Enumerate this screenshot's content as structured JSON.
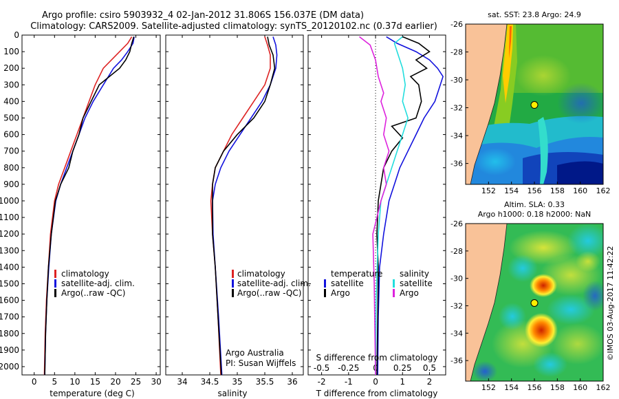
{
  "header": {
    "line1": "Argo profile: csiro 5903932_4 02-Jan-2012 31.806S 156.037E (DM data)",
    "line2": "Climatology: CARS2009. Satellite-adjusted climatology: synTS_20120102.nc (0.37d earlier)"
  },
  "colors": {
    "climatology": "#dd2222",
    "satellite": "#1111dd",
    "argo": "#000000",
    "argo_salinity": "#dd22dd",
    "sat_salinity": "#22dddd",
    "land": "#f9c298"
  },
  "side_text": "©IMOS 03-Aug-2017 11:42:22",
  "chart_data": [
    {
      "id": "temperature",
      "type": "line",
      "xlabel": "temperature (deg C)",
      "ylabel": "",
      "xlim": [
        -3,
        31
      ],
      "ylim": [
        2050,
        0
      ],
      "xticks": [
        "0",
        "5",
        "10",
        "15",
        "20",
        "25",
        "30"
      ],
      "xtick_values": [
        0,
        5,
        10,
        15,
        20,
        25,
        30
      ],
      "yticks": [
        "0",
        "100",
        "200",
        "300",
        "400",
        "500",
        "600",
        "700",
        "800",
        "900",
        "1000",
        "1100",
        "1200",
        "1300",
        "1400",
        "1500",
        "1600",
        "1700",
        "1800",
        "1900",
        "2000"
      ],
      "ytick_values": [
        0,
        100,
        200,
        300,
        400,
        500,
        600,
        700,
        800,
        900,
        1000,
        1100,
        1200,
        1300,
        1400,
        1500,
        1600,
        1700,
        1800,
        1900,
        2000
      ],
      "legend": [
        "climatology",
        "satellite-adj. clim.",
        "Argo(..raw -QC)"
      ],
      "series": [
        {
          "name": "climatology",
          "color": "#dd2222",
          "x": [
            24.0,
            23.0,
            21.0,
            19.0,
            17.0,
            15.0,
            13.5,
            12.0,
            10.5,
            9.0,
            7.5,
            6.0,
            5.0,
            4.0,
            3.5,
            3.0,
            2.7,
            2.5
          ],
          "y": [
            10,
            50,
            100,
            150,
            200,
            300,
            400,
            500,
            600,
            700,
            800,
            900,
            1000,
            1200,
            1400,
            1600,
            1800,
            2050
          ]
        },
        {
          "name": "satellite-adj. clim.",
          "color": "#1111dd",
          "x": [
            24.6,
            24.3,
            23.0,
            21.5,
            19.5,
            17.0,
            14.5,
            12.5,
            11.0,
            9.5,
            8.0,
            6.5,
            5.3,
            4.2,
            3.6,
            3.1,
            2.8,
            2.6
          ],
          "y": [
            10,
            50,
            100,
            150,
            200,
            300,
            400,
            500,
            600,
            700,
            800,
            900,
            1000,
            1200,
            1400,
            1600,
            1800,
            2050
          ]
        },
        {
          "name": "Argo(..raw -QC)",
          "color": "#000000",
          "x": [
            24.5,
            24.0,
            23.5,
            22.5,
            21.0,
            18.5,
            16.0,
            14.0,
            12.0,
            11.0,
            9.5,
            8.5,
            6.5,
            5.2,
            4.2,
            3.5,
            3.1,
            2.8,
            2.6
          ],
          "y": [
            10,
            50,
            100,
            150,
            200,
            250,
            300,
            400,
            500,
            600,
            700,
            800,
            900,
            1000,
            1200,
            1400,
            1600,
            1800,
            2050
          ]
        }
      ]
    },
    {
      "id": "salinity",
      "type": "line",
      "xlabel": "salinity",
      "ylabel": "",
      "xlim": [
        33.7,
        36.2
      ],
      "ylim": [
        2050,
        0
      ],
      "xticks": [
        "34",
        "34.5",
        "35",
        "35.5",
        "36"
      ],
      "xtick_values": [
        34,
        34.5,
        35,
        35.5,
        36
      ],
      "legend": [
        "climatology",
        "satellite-adj. clim.",
        "Argo(..raw -QC)"
      ],
      "annotation": [
        "Argo Australia",
        "PI: Susan Wijffels"
      ],
      "series": [
        {
          "name": "climatology",
          "color": "#dd2222",
          "x": [
            35.5,
            35.55,
            35.6,
            35.6,
            35.5,
            35.3,
            35.1,
            34.9,
            34.75,
            34.6,
            34.55,
            34.52,
            34.55,
            34.6,
            34.65,
            34.7
          ],
          "y": [
            10,
            60,
            120,
            200,
            300,
            400,
            500,
            600,
            700,
            800,
            900,
            1000,
            1200,
            1400,
            1700,
            2050
          ]
        },
        {
          "name": "satellite-adj. clim.",
          "color": "#1111dd",
          "x": [
            35.65,
            35.7,
            35.72,
            35.7,
            35.6,
            35.45,
            35.25,
            35.05,
            34.85,
            34.7,
            34.6,
            34.55,
            34.56,
            34.6,
            34.66,
            34.72
          ],
          "y": [
            10,
            60,
            120,
            200,
            300,
            400,
            500,
            600,
            700,
            800,
            900,
            1000,
            1200,
            1400,
            1700,
            2050
          ]
        },
        {
          "name": "Argo(..raw -QC)",
          "color": "#000000",
          "x": [
            35.55,
            35.58,
            35.65,
            35.68,
            35.6,
            35.5,
            35.3,
            35.0,
            34.75,
            34.6,
            34.55,
            34.55,
            34.6,
            34.65,
            34.71
          ],
          "y": [
            10,
            60,
            120,
            200,
            300,
            400,
            500,
            600,
            700,
            800,
            900,
            1200,
            1400,
            1700,
            2050
          ]
        }
      ]
    },
    {
      "id": "difference",
      "type": "line",
      "xlabel": "T difference from climatology",
      "xlabel_top": "S difference from climatology",
      "xlim": [
        -2.5,
        2.6
      ],
      "ylim": [
        2050,
        0
      ],
      "xticks": [
        "-2",
        "-1",
        "0",
        "1",
        "2"
      ],
      "xtick_values": [
        -2,
        -1,
        0,
        1,
        2
      ],
      "sticks": [
        "-0.5",
        "-0.25",
        "0",
        "0.25",
        "0.5"
      ],
      "stick_values_T": [
        -2,
        -1,
        0,
        1,
        2
      ],
      "legend_left_title": "temperature",
      "legend_right_title": "salinity",
      "legend": [
        "satellite",
        "Argo",
        "satellite",
        "Argo"
      ],
      "series": [
        {
          "name": "T satellite",
          "color": "#1111dd",
          "x": [
            0.4,
            0.8,
            1.5,
            2.0,
            2.3,
            2.5,
            2.4,
            2.2,
            1.8,
            1.5,
            1.2,
            0.9,
            0.7,
            0.5,
            0.3,
            0.15,
            0.1,
            0.08
          ],
          "y": [
            10,
            50,
            100,
            150,
            200,
            250,
            300,
            400,
            500,
            600,
            700,
            800,
            900,
            1000,
            1200,
            1400,
            1700,
            2050
          ]
        },
        {
          "name": "T Argo",
          "color": "#000000",
          "x": [
            1.0,
            1.6,
            2.0,
            1.5,
            1.9,
            1.3,
            1.6,
            1.7,
            1.5,
            0.6,
            1.0,
            0.6,
            0.3,
            0.1,
            0.05,
            0.1,
            0.08,
            0.05
          ],
          "y": [
            10,
            50,
            100,
            150,
            200,
            250,
            300,
            400,
            500,
            550,
            620,
            700,
            800,
            1000,
            1200,
            1400,
            1700,
            2050
          ]
        },
        {
          "name": "S satellite",
          "color": "#22dddd",
          "x": [
            1.0,
            0.7,
            0.8,
            1.0,
            1.1,
            1.0,
            1.2,
            1.0,
            0.8,
            0.6,
            0.4,
            0.2,
            0.1,
            0.02,
            0.0
          ],
          "y": [
            10,
            50,
            100,
            200,
            300,
            400,
            500,
            600,
            700,
            800,
            900,
            1000,
            1200,
            1600,
            2050
          ]
        },
        {
          "name": "S Argo",
          "color": "#dd22dd",
          "x": [
            -0.6,
            -0.2,
            0.0,
            0.1,
            0.3,
            0.2,
            0.4,
            0.3,
            0.5,
            0.3,
            0.4,
            0.2,
            -0.1,
            -0.05,
            0.0
          ],
          "y": [
            10,
            60,
            150,
            250,
            350,
            400,
            500,
            600,
            700,
            800,
            900,
            1000,
            1200,
            1500,
            2050
          ]
        }
      ]
    }
  ],
  "maps": [
    {
      "id": "sst-map",
      "title": "sat. SST: 23.8 Argo: 24.9",
      "title2": "",
      "xticks": [
        "152",
        "154",
        "156",
        "158",
        "160",
        "162"
      ],
      "yticks": [
        "-26",
        "-28",
        "-30",
        "-32",
        "-34",
        "-36"
      ],
      "xlim": [
        150,
        162
      ],
      "ylim": [
        -37.5,
        -26
      ],
      "marker": {
        "lon": 156.0,
        "lat": -31.8
      }
    },
    {
      "id": "sla-map",
      "title": "Altim. SLA: 0.33",
      "title2": "Argo h1000: 0.18 h2000: NaN",
      "xticks": [
        "152",
        "154",
        "156",
        "158",
        "160",
        "162"
      ],
      "yticks": [
        "-26",
        "-28",
        "-30",
        "-32",
        "-34",
        "-36"
      ],
      "xlim": [
        150,
        162
      ],
      "ylim": [
        -37.5,
        -26
      ],
      "marker": {
        "lon": 156.0,
        "lat": -31.8
      }
    }
  ]
}
